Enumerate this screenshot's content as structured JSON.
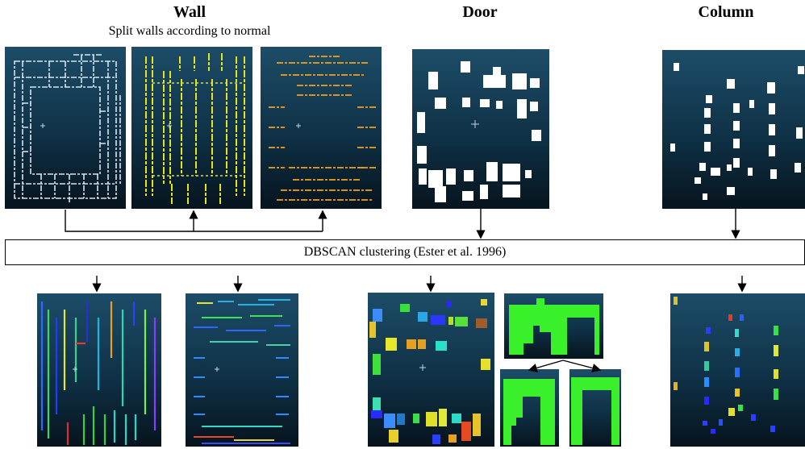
{
  "headings": {
    "wall": "Wall",
    "wall_subtitle": "Split walls according to normal",
    "door": "Door",
    "column": "Column"
  },
  "process_box": {
    "label": "DBSCAN clustering (Ester et al. 1996)"
  },
  "colors": {
    "panel_top": "#1d4d68",
    "panel_bottom": "#06141e",
    "wall_all": "#d9e4ee",
    "wall_normal_a": "#e6e21c",
    "wall_normal_b": "#f3a21a",
    "segmentation": "#ffffff",
    "door_green": "#39f02a"
  }
}
